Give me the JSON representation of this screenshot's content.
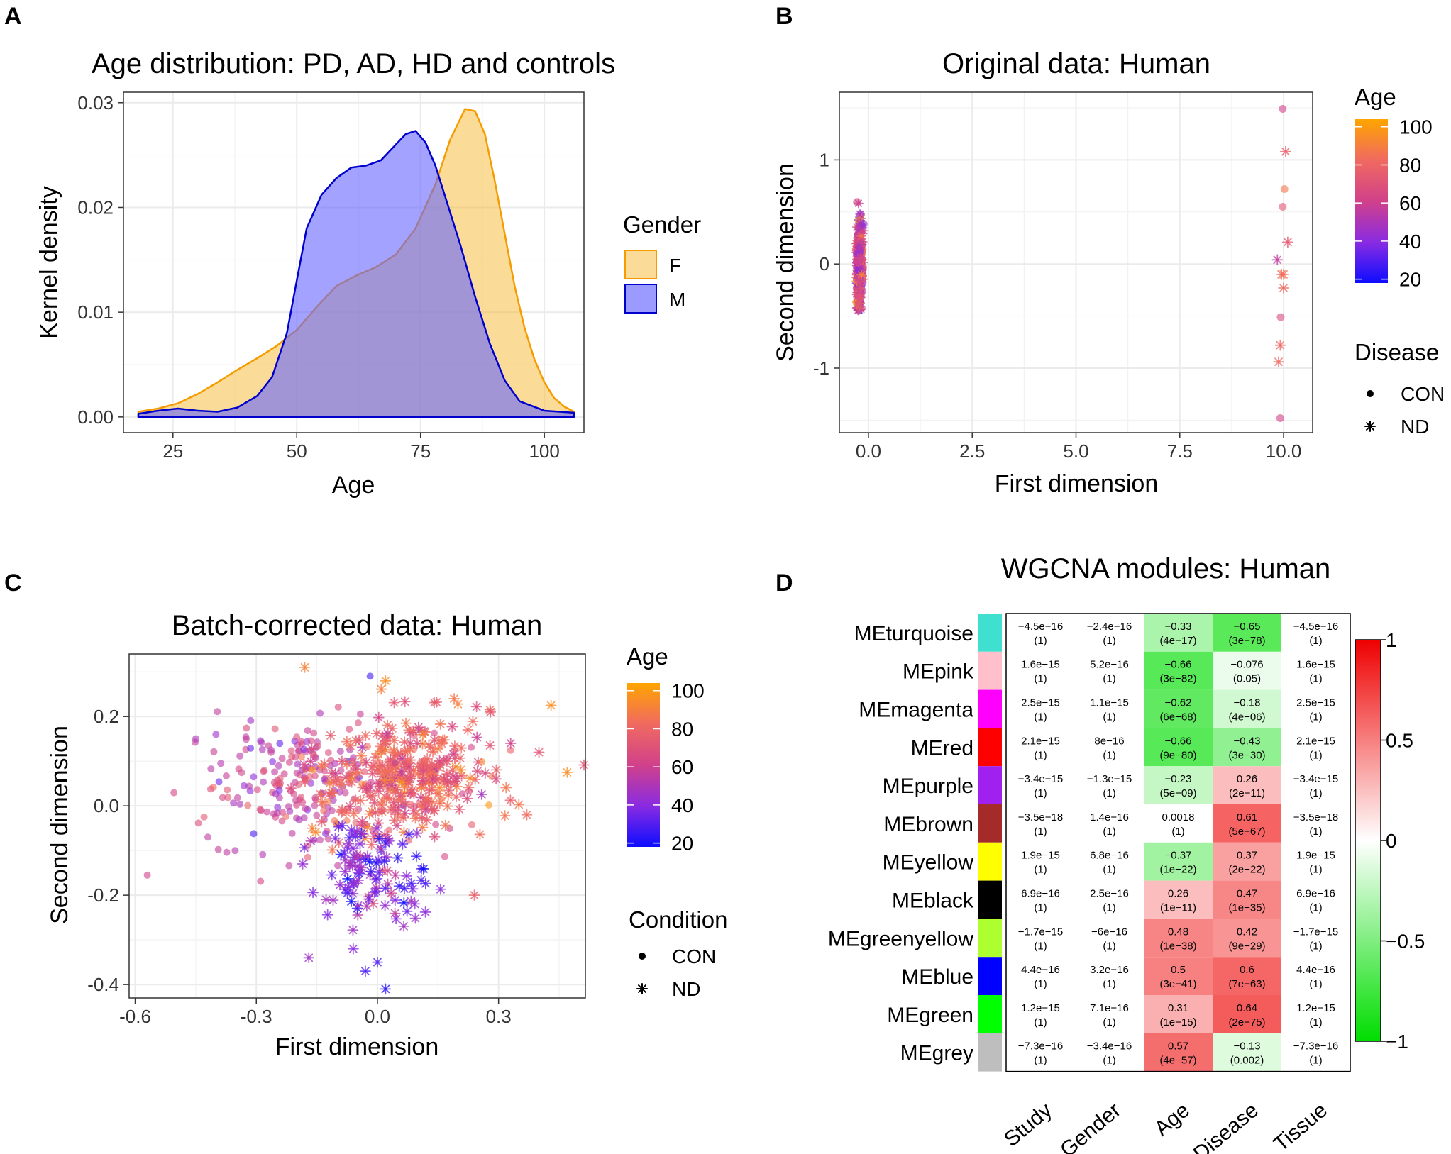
{
  "panels": {
    "A": {
      "letter": "A",
      "chart_data": {
        "type": "area",
        "title": "Age distribution: PD, AD, HD and controls",
        "xlabel": "Age",
        "ylabel": "Kernel density",
        "xlim": [
          15,
          108
        ],
        "ylim": [
          -0.0015,
          0.031
        ],
        "x_ticks": [
          25,
          50,
          75,
          100
        ],
        "x_tick_labels": [
          "25",
          "50",
          "75",
          "100"
        ],
        "y_ticks": [
          0,
          0.01,
          0.02,
          0.03
        ],
        "y_tick_labels": [
          "0.00",
          "0.01",
          "0.02",
          "0.03"
        ],
        "legend": {
          "title": "Gender",
          "position": "right"
        },
        "series": [
          {
            "name": "F",
            "fill": "#F7B731",
            "stroke": "#F59C00",
            "points": [
              [
                18,
                0.0005
              ],
              [
                22,
                0.0008
              ],
              [
                26,
                0.0013
              ],
              [
                30,
                0.0022
              ],
              [
                34,
                0.0033
              ],
              [
                38,
                0.0045
              ],
              [
                42,
                0.0056
              ],
              [
                46,
                0.0068
              ],
              [
                50,
                0.0083
              ],
              [
                54,
                0.0105
              ],
              [
                58,
                0.0125
              ],
              [
                62,
                0.0135
              ],
              [
                66,
                0.0143
              ],
              [
                70,
                0.0155
              ],
              [
                74,
                0.018
              ],
              [
                78,
                0.0222
              ],
              [
                81,
                0.0265
              ],
              [
                84,
                0.0294
              ],
              [
                86,
                0.0292
              ],
              [
                88,
                0.027
              ],
              [
                90,
                0.0225
              ],
              [
                92,
                0.0175
              ],
              [
                94,
                0.0125
              ],
              [
                96,
                0.0085
              ],
              [
                98,
                0.0055
              ],
              [
                100,
                0.0033
              ],
              [
                102,
                0.0018
              ],
              [
                104,
                0.001
              ],
              [
                106,
                0.0005
              ]
            ]
          },
          {
            "name": "M",
            "fill": "#6666FF",
            "stroke": "#0000CC",
            "points": [
              [
                18,
                0.0003
              ],
              [
                22,
                0.0006
              ],
              [
                26,
                0.0008
              ],
              [
                30,
                0.0006
              ],
              [
                34,
                0.0005
              ],
              [
                38,
                0.0009
              ],
              [
                42,
                0.002
              ],
              [
                45,
                0.0038
              ],
              [
                48,
                0.008
              ],
              [
                50,
                0.013
              ],
              [
                52,
                0.018
              ],
              [
                55,
                0.0212
              ],
              [
                58,
                0.0228
              ],
              [
                61,
                0.0238
              ],
              [
                64,
                0.024
              ],
              [
                67,
                0.0245
              ],
              [
                70,
                0.026
              ],
              [
                72,
                0.027
              ],
              [
                74,
                0.0273
              ],
              [
                76,
                0.0262
              ],
              [
                78,
                0.024
              ],
              [
                80,
                0.021
              ],
              [
                83,
                0.0165
              ],
              [
                86,
                0.0115
              ],
              [
                89,
                0.007
              ],
              [
                92,
                0.0035
              ],
              [
                95,
                0.0015
              ],
              [
                100,
                0.0006
              ],
              [
                106,
                0.0004
              ]
            ]
          }
        ]
      }
    },
    "B": {
      "letter": "B",
      "chart_data": {
        "type": "scatter",
        "title": "Original data: Human",
        "xlabel": "First dimension",
        "ylabel": "Second dimension",
        "xlim": [
          -0.7,
          10.7
        ],
        "ylim": [
          -1.62,
          1.65
        ],
        "x_ticks": [
          0,
          2.5,
          5,
          7.5,
          10
        ],
        "x_tick_labels": [
          "0.0",
          "2.5",
          "5.0",
          "7.5",
          "10.0"
        ],
        "y_ticks": [
          -1,
          0,
          1
        ],
        "y_tick_labels": [
          "-1",
          "0",
          "1"
        ],
        "legend": {
          "color_title": "Age",
          "color_ticks": [
            "20",
            "40",
            "60",
            "80",
            "100"
          ],
          "shape_title": "Disease",
          "shapes": [
            "CON",
            "ND"
          ]
        },
        "series": [
          {
            "name": "cluster right",
            "points": [
              {
                "x": 9.98,
                "y": 1.49,
                "age": 60,
                "shape": "CON"
              },
              {
                "x": 10.05,
                "y": 1.08,
                "age": 75,
                "shape": "ND"
              },
              {
                "x": 10.02,
                "y": 0.72,
                "age": 85,
                "shape": "CON"
              },
              {
                "x": 9.98,
                "y": 0.55,
                "age": 70,
                "shape": "CON"
              },
              {
                "x": 10.1,
                "y": 0.21,
                "age": 72,
                "shape": "ND"
              },
              {
                "x": 9.85,
                "y": 0.04,
                "age": 55,
                "shape": "ND"
              },
              {
                "x": 10.0,
                "y": -0.1,
                "age": 85,
                "shape": "ND"
              },
              {
                "x": 9.95,
                "y": -0.1,
                "age": 80,
                "shape": "ND"
              },
              {
                "x": 10.0,
                "y": -0.23,
                "age": 80,
                "shape": "ND"
              },
              {
                "x": 9.93,
                "y": -0.51,
                "age": 65,
                "shape": "CON"
              },
              {
                "x": 9.92,
                "y": -0.78,
                "age": 78,
                "shape": "ND"
              },
              {
                "x": 9.88,
                "y": -0.94,
                "age": 80,
                "shape": "ND"
              },
              {
                "x": 9.92,
                "y": -1.48,
                "age": 60,
                "shape": "CON"
              }
            ]
          }
        ]
      }
    },
    "C": {
      "letter": "C",
      "chart_data": {
        "type": "scatter",
        "title": "Batch-corrected data: Human",
        "xlabel": "First dimension",
        "ylabel": "Second dimension",
        "xlim": [
          -0.615,
          0.515
        ],
        "ylim": [
          -0.43,
          0.34
        ],
        "x_ticks": [
          -0.6,
          -0.3,
          0,
          0.3
        ],
        "x_tick_labels": [
          "-0.6",
          "-0.3",
          "0.0",
          "0.3"
        ],
        "y_ticks": [
          -0.4,
          -0.2,
          0,
          0.2
        ],
        "y_tick_labels": [
          "-0.4",
          "-0.2",
          "0.0",
          "0.2"
        ],
        "legend": {
          "color_title": "Age",
          "color_ticks": [
            "20",
            "40",
            "60",
            "80",
            "100"
          ],
          "shape_title": "Condition",
          "shapes": [
            "CON",
            "ND"
          ]
        },
        "series": [
          {
            "name": "outlying samples",
            "points": [
              {
                "x": -0.57,
                "y": -0.155,
                "age": 60,
                "shape": "CON"
              },
              {
                "x": -0.45,
                "y": 0.15,
                "age": 50,
                "shape": "CON"
              },
              {
                "x": -0.4,
                "y": 0.16,
                "age": 45,
                "shape": "CON"
              },
              {
                "x": -0.42,
                "y": -0.07,
                "age": 55,
                "shape": "CON"
              },
              {
                "x": -0.17,
                "y": -0.34,
                "age": 45,
                "shape": "ND"
              },
              {
                "x": -0.06,
                "y": -0.32,
                "age": 40,
                "shape": "ND"
              },
              {
                "x": -0.03,
                "y": -0.37,
                "age": 30,
                "shape": "ND"
              },
              {
                "x": 0.02,
                "y": -0.41,
                "age": 25,
                "shape": "ND"
              },
              {
                "x": 0.0,
                "y": -0.35,
                "age": 30,
                "shape": "ND"
              },
              {
                "x": -0.18,
                "y": 0.31,
                "age": 90,
                "shape": "ND"
              },
              {
                "x": 0.02,
                "y": 0.28,
                "age": 95,
                "shape": "ND"
              },
              {
                "x": 0.43,
                "y": 0.225,
                "age": 95,
                "shape": "ND"
              },
              {
                "x": 0.47,
                "y": 0.075,
                "age": 95,
                "shape": "ND"
              },
              {
                "x": 0.4,
                "y": 0.12,
                "age": 70,
                "shape": "ND"
              },
              {
                "x": 0.37,
                "y": -0.02,
                "age": 80,
                "shape": "ND"
              },
              {
                "x": 0.33,
                "y": 0.14,
                "age": 60,
                "shape": "ND"
              },
              {
                "x": 0.24,
                "y": -0.2,
                "age": 75,
                "shape": "ND"
              },
              {
                "x": 0.19,
                "y": 0.24,
                "age": 85,
                "shape": "ND"
              },
              {
                "x": 0.28,
                "y": 0.21,
                "age": 70,
                "shape": "ND"
              }
            ]
          }
        ]
      }
    },
    "D": {
      "letter": "D",
      "chart_data": {
        "type": "heatmap",
        "title": "WGCNA modules: Human",
        "columns": [
          "Study",
          "Gender",
          "Age",
          "Disease",
          "Tissue"
        ],
        "color_scale": {
          "min": -1,
          "max": 1,
          "low": "#00DD00",
          "mid": "#FFFFFF",
          "high": "#EE0000",
          "ticks": [
            "1",
            "0.5",
            "0",
            "−0.5",
            "−1"
          ]
        },
        "rows": [
          {
            "name": "MEturquoise",
            "color": "#40E0D0",
            "values": [
              0,
              0,
              -0.33,
              -0.65,
              0
            ],
            "labels": [
              "−4.5e−16",
              "−2.4e−16",
              "−0.33",
              "−0.65",
              "−4.5e−16"
            ],
            "pvals": [
              "(1)",
              "(1)",
              "(4e−17)",
              "(3e−78)",
              "(1)"
            ]
          },
          {
            "name": "MEpink",
            "color": "#FFC0CB",
            "values": [
              0,
              0,
              -0.66,
              -0.076,
              0
            ],
            "labels": [
              "1.6e−15",
              "5.2e−16",
              "−0.66",
              "−0.076",
              "1.6e−15"
            ],
            "pvals": [
              "(1)",
              "(1)",
              "(3e−82)",
              "(0.05)",
              "(1)"
            ]
          },
          {
            "name": "MEmagenta",
            "color": "#FF00FF",
            "values": [
              0,
              0,
              -0.62,
              -0.18,
              0
            ],
            "labels": [
              "2.5e−15",
              "1.1e−15",
              "−0.62",
              "−0.18",
              "2.5e−15"
            ],
            "pvals": [
              "(1)",
              "(1)",
              "(6e−68)",
              "(4e−06)",
              "(1)"
            ]
          },
          {
            "name": "MEred",
            "color": "#FF0000",
            "values": [
              0,
              0,
              -0.66,
              -0.43,
              0
            ],
            "labels": [
              "2.1e−15",
              "8e−16",
              "−0.66",
              "−0.43",
              "2.1e−15"
            ],
            "pvals": [
              "(1)",
              "(1)",
              "(9e−80)",
              "(3e−30)",
              "(1)"
            ]
          },
          {
            "name": "MEpurple",
            "color": "#A020F0",
            "values": [
              0,
              0,
              -0.23,
              0.26,
              0
            ],
            "labels": [
              "−3.4e−15",
              "−1.3e−15",
              "−0.23",
              "0.26",
              "−3.4e−15"
            ],
            "pvals": [
              "(1)",
              "(1)",
              "(5e−09)",
              "(2e−11)",
              "(1)"
            ]
          },
          {
            "name": "MEbrown",
            "color": "#A52A2A",
            "values": [
              0,
              0,
              0.0018,
              0.61,
              0
            ],
            "labels": [
              "−3.5e−18",
              "1.4e−16",
              "0.0018",
              "0.61",
              "−3.5e−18"
            ],
            "pvals": [
              "(1)",
              "(1)",
              "(1)",
              "(5e−67)",
              "(1)"
            ]
          },
          {
            "name": "MEyellow",
            "color": "#FFFF00",
            "values": [
              0,
              0,
              -0.37,
              0.37,
              0
            ],
            "labels": [
              "1.9e−15",
              "6.8e−16",
              "−0.37",
              "0.37",
              "1.9e−15"
            ],
            "pvals": [
              "(1)",
              "(1)",
              "(1e−22)",
              "(2e−22)",
              "(1)"
            ]
          },
          {
            "name": "MEblack",
            "color": "#000000",
            "values": [
              0,
              0,
              0.26,
              0.47,
              0
            ],
            "labels": [
              "6.9e−16",
              "2.5e−16",
              "0.26",
              "0.47",
              "6.9e−16"
            ],
            "pvals": [
              "(1)",
              "(1)",
              "(1e−11)",
              "(1e−35)",
              "(1)"
            ]
          },
          {
            "name": "MEgreenyellow",
            "color": "#ADFF2F",
            "values": [
              0,
              0,
              0.48,
              0.42,
              0
            ],
            "labels": [
              "−1.7e−15",
              "−6e−16",
              "0.48",
              "0.42",
              "−1.7e−15"
            ],
            "pvals": [
              "(1)",
              "(1)",
              "(1e−38)",
              "(9e−29)",
              "(1)"
            ]
          },
          {
            "name": "MEblue",
            "color": "#0000FF",
            "values": [
              0,
              0,
              0.5,
              0.6,
              0
            ],
            "labels": [
              "4.4e−16",
              "3.2e−16",
              "0.5",
              "0.6",
              "4.4e−16"
            ],
            "pvals": [
              "(1)",
              "(1)",
              "(3e−41)",
              "(7e−63)",
              "(1)"
            ]
          },
          {
            "name": "MEgreen",
            "color": "#00FF00",
            "values": [
              0,
              0,
              0.31,
              0.64,
              0
            ],
            "labels": [
              "1.2e−15",
              "7.1e−16",
              "0.31",
              "0.64",
              "1.2e−15"
            ],
            "pvals": [
              "(1)",
              "(1)",
              "(1e−15)",
              "(2e−75)",
              "(1)"
            ]
          },
          {
            "name": "MEgrey",
            "color": "#BEBEBE",
            "values": [
              0,
              0,
              0.57,
              -0.13,
              0
            ],
            "labels": [
              "−7.3e−16",
              "−3.4e−16",
              "0.57",
              "−0.13",
              "−7.3e−16"
            ],
            "pvals": [
              "(1)",
              "(1)",
              "(4e−57)",
              "(0.002)",
              "(1)"
            ]
          }
        ]
      }
    }
  }
}
